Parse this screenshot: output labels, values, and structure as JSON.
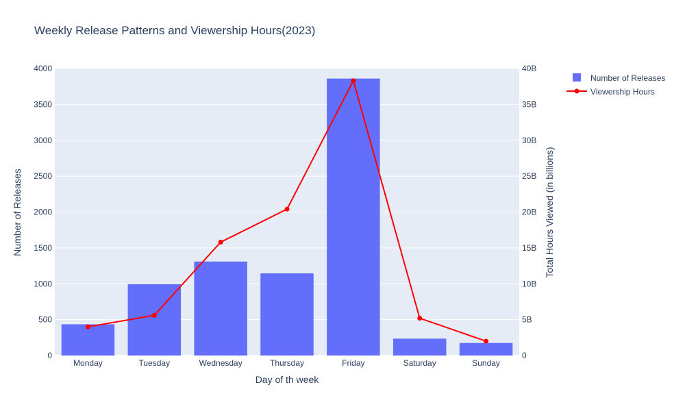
{
  "chart_data": {
    "type": "bar+line",
    "title": "Weekly Release Patterns and Viewership Hours(2023)",
    "xlabel": "Day of th week",
    "ylabel": "Number of Releases",
    "y2label": "Total Hours Viewed (in billions)",
    "categories": [
      "Monday",
      "Tuesday",
      "Wednesday",
      "Thursday",
      "Friday",
      "Saturday",
      "Sunday"
    ],
    "ylim": [
      0,
      4000
    ],
    "y2lim": [
      0,
      40000000000
    ],
    "yticks": [
      0,
      500,
      1000,
      1500,
      2000,
      2500,
      3000,
      3500,
      4000
    ],
    "y2ticks": [
      0,
      5000000000,
      10000000000,
      15000000000,
      20000000000,
      25000000000,
      30000000000,
      35000000000,
      40000000000
    ],
    "y2tick_labels": [
      "0",
      "5B",
      "10B",
      "15B",
      "20B",
      "25B",
      "30B",
      "35B",
      "40B"
    ],
    "series": [
      {
        "name": "Number of Releases",
        "kind": "bar",
        "axis": "y",
        "color": "#636efa",
        "values": [
          435,
          995,
          1310,
          1145,
          3860,
          235,
          175
        ]
      },
      {
        "name": "Viewership Hours",
        "kind": "line",
        "axis": "y2",
        "color": "#ff0000",
        "values": [
          4000000000,
          5600000000,
          15800000000,
          20400000000,
          38300000000,
          5200000000,
          2000000000
        ]
      }
    ],
    "grid": true,
    "legend_position": "top-right",
    "plot_background": "#e5ecf6"
  }
}
